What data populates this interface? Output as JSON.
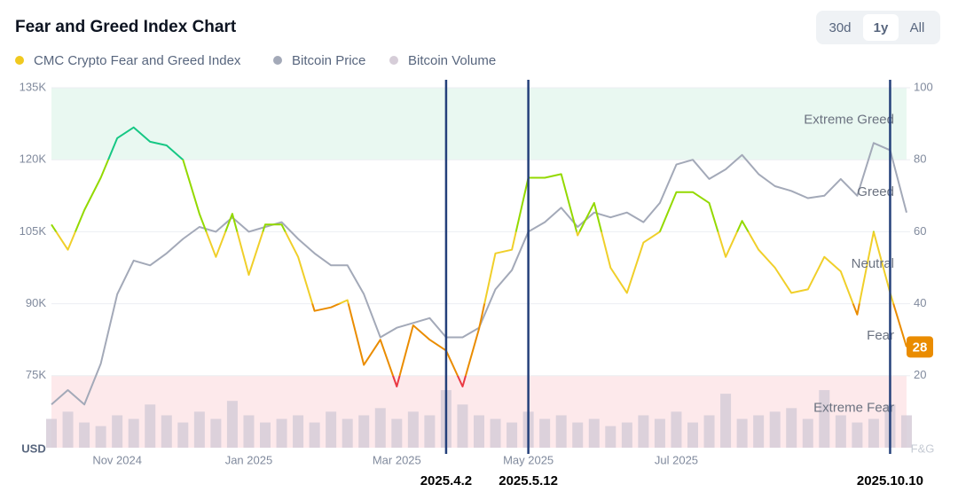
{
  "chart_data": {
    "type": "line",
    "title": "Fear and Greed Index Chart",
    "range_buttons": [
      "30d",
      "1y",
      "All"
    ],
    "selected_range": "1y",
    "categories": [
      null,
      null,
      null,
      null,
      "Nov 2024",
      null,
      null,
      null,
      null,
      null,
      null,
      null,
      "Jan 2025",
      null,
      null,
      null,
      null,
      null,
      null,
      null,
      null,
      "Mar 2025",
      null,
      null,
      null,
      null,
      null,
      null,
      null,
      "May 2025",
      null,
      null,
      null,
      null,
      null,
      null,
      null,
      null,
      "Jul 2025",
      null,
      null,
      null,
      null,
      null,
      null,
      null,
      null,
      null,
      null,
      null,
      null,
      null,
      null
    ],
    "markers": [
      null,
      null,
      null,
      null,
      null,
      null,
      null,
      null,
      null,
      null,
      null,
      null,
      null,
      null,
      null,
      null,
      null,
      null,
      null,
      null,
      null,
      null,
      null,
      null,
      "2025.4.2",
      null,
      null,
      null,
      null,
      "2025.5.12",
      null,
      null,
      null,
      null,
      null,
      null,
      null,
      null,
      null,
      null,
      null,
      null,
      null,
      null,
      null,
      null,
      null,
      null,
      null,
      null,
      null,
      "2025.10.10",
      null
    ],
    "ylabel": "USD",
    "y2label": "F&G",
    "ylim": [
      60000,
      135000
    ],
    "yticks": [
      {
        "value": 75000,
        "label": "75K"
      },
      {
        "value": 90000,
        "label": "90K"
      },
      {
        "value": 105000,
        "label": "105K"
      },
      {
        "value": 120000,
        "label": "120K"
      },
      {
        "value": 135000,
        "label": "135K"
      }
    ],
    "y2lim": [
      0,
      100
    ],
    "y2ticks": [
      20,
      40,
      60,
      80,
      100
    ],
    "grid": true,
    "zones": [
      {
        "label": "Extreme Fear",
        "from": 0,
        "to": 20,
        "color": "#ea3943",
        "band": "#fde9eb"
      },
      {
        "label": "Fear",
        "from": 20,
        "to": 40,
        "color": "#ea8c00"
      },
      {
        "label": "Neutral",
        "from": 40,
        "to": 60,
        "color": "#f0cf2a"
      },
      {
        "label": "Greed",
        "from": 60,
        "to": 80,
        "color": "#93d900"
      },
      {
        "label": "Extreme Greed",
        "from": 80,
        "to": 100,
        "color": "#16c784",
        "band": "#e9f8f1"
      }
    ],
    "last_value_label": true,
    "series": [
      {
        "name": "CMC Crypto Fear and Greed Index",
        "color": "#f0c91f",
        "axis": "y2",
        "type": "line",
        "values": [
          62,
          55,
          66,
          75,
          86,
          89,
          85,
          84,
          80,
          65,
          53,
          65,
          48,
          62,
          62,
          53,
          38,
          39,
          41,
          23,
          30,
          17,
          34,
          30,
          27,
          17,
          33,
          54,
          55,
          75,
          75,
          76,
          59,
          68,
          50,
          43,
          57,
          60,
          71,
          71,
          68,
          53,
          63,
          55,
          50,
          43,
          44,
          53,
          49,
          37,
          60,
          43,
          28
        ]
      },
      {
        "name": "Bitcoin Price",
        "color": "#a3a9b8",
        "type": "line",
        "values": [
          69000,
          72000,
          69000,
          77500,
          92000,
          99000,
          98000,
          100500,
          103500,
          106000,
          105000,
          108000,
          105000,
          106000,
          107000,
          103500,
          100500,
          98000,
          98000,
          92000,
          83000,
          85000,
          86000,
          87000,
          83000,
          83000,
          85000,
          93000,
          97000,
          105000,
          107000,
          110000,
          106000,
          109000,
          108000,
          109000,
          107000,
          111000,
          119000,
          120000,
          116000,
          118000,
          121000,
          117000,
          114500,
          113500,
          112000,
          112500,
          116000,
          112500,
          123500,
          122000,
          109000
        ]
      },
      {
        "name": "Bitcoin Volume",
        "color": "#d6cdd8",
        "axis": "y2",
        "type": "bar",
        "values": [
          8,
          10,
          7,
          6,
          9,
          8,
          12,
          9,
          7,
          10,
          8,
          13,
          9,
          7,
          8,
          9,
          7,
          10,
          8,
          9,
          11,
          8,
          10,
          9,
          16,
          12,
          9,
          8,
          7,
          10,
          8,
          9,
          7,
          8,
          6,
          7,
          9,
          8,
          10,
          7,
          9,
          15,
          8,
          9,
          10,
          11,
          8,
          16,
          9,
          7,
          8,
          12,
          9
        ]
      }
    ]
  }
}
